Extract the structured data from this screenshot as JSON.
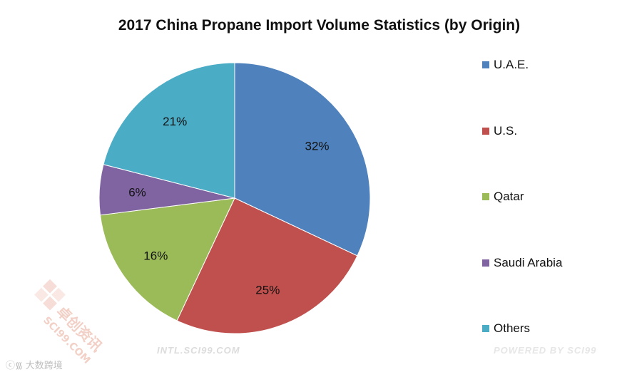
{
  "chart_data": {
    "type": "pie",
    "title": "2017 China Propane Import Volume Statistics (by Origin)",
    "slices": [
      {
        "label": "U.A.E.",
        "value": 32,
        "display": "32%",
        "color": "#4F81BD"
      },
      {
        "label": "U.S.",
        "value": 25,
        "display": "25%",
        "color": "#C0504D"
      },
      {
        "label": "Qatar",
        "value": 16,
        "display": "16%",
        "color": "#9BBB59"
      },
      {
        "label": "Saudi Arabia",
        "value": 6,
        "display": "6%",
        "color": "#8064A2"
      },
      {
        "label": "Others",
        "value": 21,
        "display": "21%",
        "color": "#4BACC6"
      }
    ],
    "legend_position": "right"
  },
  "watermarks": {
    "url": "INTL.SCI99.COM",
    "powered": "POWERED BY SCI99",
    "cn_brand": "大数跨境",
    "logo_cn": "卓创资讯",
    "logo_en": "SCI99.COM"
  }
}
